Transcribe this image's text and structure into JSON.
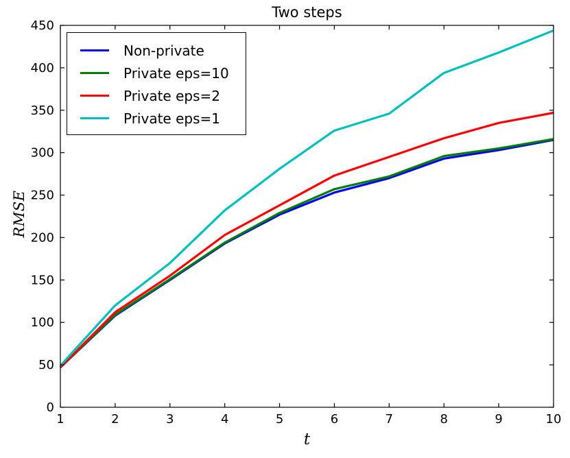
{
  "figure": {
    "background": "#ffffff"
  },
  "chart_data": {
    "type": "line",
    "title": "Two steps",
    "xlabel": "t",
    "ylabel": "RMSE",
    "x": [
      1,
      2,
      3,
      4,
      5,
      6,
      7,
      8,
      9,
      10
    ],
    "series": [
      {
        "name": "Non-private",
        "color": "#0000ff",
        "values": [
          47,
          108,
          150,
          193,
          227,
          253,
          270,
          293,
          303,
          315
        ]
      },
      {
        "name": "Private eps=10",
        "color": "#007f00",
        "values": [
          47,
          109,
          151,
          194,
          229,
          257,
          272,
          296,
          305,
          316
        ]
      },
      {
        "name": "Private eps=2",
        "color": "#ff0000",
        "values": [
          47,
          112,
          155,
          203,
          238,
          273,
          295,
          317,
          335,
          347
        ]
      },
      {
        "name": "Private eps=1",
        "color": "#00bfbf",
        "values": [
          49,
          120,
          170,
          232,
          281,
          326,
          346,
          394,
          418,
          444
        ]
      }
    ],
    "xlim": [
      1,
      10
    ],
    "ylim": [
      0,
      450
    ],
    "xticks": [
      1,
      2,
      3,
      4,
      5,
      6,
      7,
      8,
      9,
      10
    ],
    "yticks": [
      0,
      50,
      100,
      150,
      200,
      250,
      300,
      350,
      400,
      450
    ],
    "grid": false,
    "legend_position": "upper-left",
    "axis_color": "#000000",
    "text_color": "#000000",
    "line_width": 3.2
  }
}
